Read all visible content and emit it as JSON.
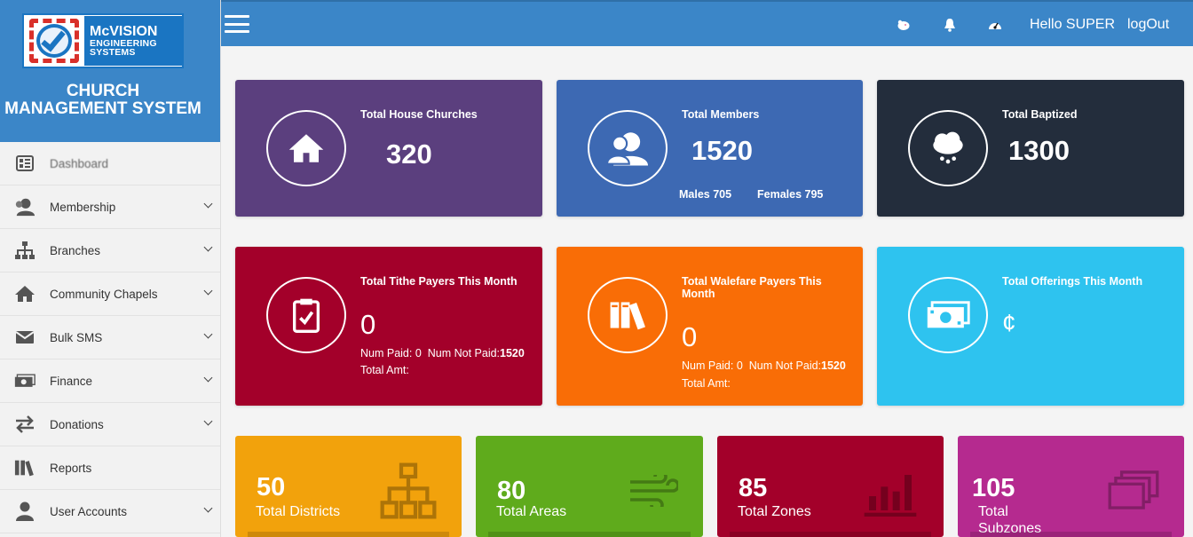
{
  "brand": {
    "logo_line1": "McVISION",
    "logo_line2": "ENGINEERING",
    "logo_line3": "SYSTEMS",
    "title_line1": "CHURCH",
    "title_line2": "MANAGEMENT SYSTEM"
  },
  "sidebar": {
    "items": [
      {
        "label": "Dashboard",
        "icon": "dashboard-icon"
      },
      {
        "label": "Membership",
        "icon": "user-icon"
      },
      {
        "label": "Branches",
        "icon": "sitemap-icon"
      },
      {
        "label": "Community Chapels",
        "icon": "home-icon"
      },
      {
        "label": "Bulk SMS",
        "icon": "envelope-icon"
      },
      {
        "label": "Finance",
        "icon": "money-icon"
      },
      {
        "label": "Donations",
        "icon": "exchange-icon"
      },
      {
        "label": "Reports",
        "icon": "books-icon"
      },
      {
        "label": "User Accounts",
        "icon": "user-icon"
      }
    ]
  },
  "header": {
    "greeting": "Hello SUPER",
    "logout": "logOut",
    "buttons": [
      {
        "icon": "pig-icon",
        "color": "#e87aa0"
      },
      {
        "icon": "bell-icon",
        "color": "#f25c05"
      },
      {
        "icon": "gauge-icon",
        "color": "#111111"
      }
    ]
  },
  "cards": {
    "house_churches": {
      "title": "Total House Churches",
      "value": "320",
      "color": "#5b3f7e"
    },
    "members": {
      "title": "Total Members",
      "value": "1520",
      "males": "Males 705",
      "females": "Females 795",
      "color": "#3d69b3"
    },
    "baptized": {
      "title": "Total Baptized",
      "value": "1300",
      "color": "#232d3c"
    },
    "tithe": {
      "title": "Total Tithe Payers This Month",
      "value": "0",
      "num_paid_label": "Num Paid:",
      "num_paid": "0",
      "num_not_paid_label": "Num Not Paid:",
      "num_not_paid": "1520",
      "total_amt": "Total Amt:",
      "color": "#a3002a"
    },
    "welfare": {
      "title_line1": "Total Walefare Payers This",
      "title_line2": "Month",
      "value": "0",
      "num_paid_label": "Num Paid:",
      "num_paid": "0",
      "num_not_paid_label": "Num Not Paid:",
      "num_not_paid": "1520",
      "total_amt": "Total Amt:",
      "color": "#f96d06"
    },
    "offerings": {
      "title": "Total Offerings This Month",
      "value": "¢",
      "color": "#2ec3ef"
    }
  },
  "stats": [
    {
      "value": "50",
      "label": "Total Districts",
      "color": "#f2a20c",
      "icon": "sitemap-icon"
    },
    {
      "value": "80",
      "label": "Total Areas",
      "color": "#5fab1c",
      "icon": "wind-icon"
    },
    {
      "value": "85",
      "label": "Total Zones",
      "color": "#a3002a",
      "icon": "bar-chart-icon"
    },
    {
      "value": "105",
      "label_line1": "Total",
      "label_line2": "Subzones",
      "color": "#b52a8f",
      "icon": "layers-icon"
    }
  ]
}
